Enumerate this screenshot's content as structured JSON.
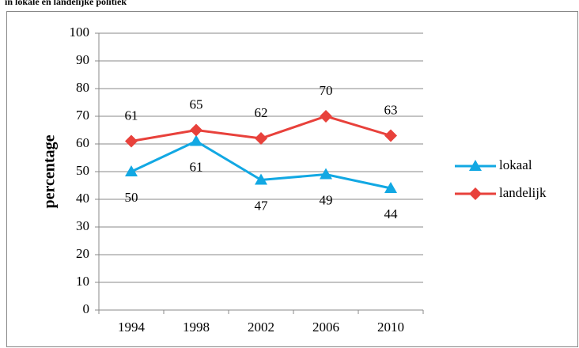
{
  "chart_data": {
    "type": "line",
    "title": "in lokale en landelijke politiek",
    "y_label": "percentage",
    "categories": [
      "1994",
      "1998",
      "2002",
      "2006",
      "2010"
    ],
    "series": [
      {
        "name": "lokaal",
        "color": "#12a8e3",
        "marker": "triangle",
        "label_position": "below",
        "values": [
          50,
          61,
          47,
          49,
          44
        ]
      },
      {
        "name": "landelijk",
        "color": "#e8413b",
        "marker": "diamond",
        "label_position": "above",
        "values": [
          61,
          65,
          62,
          70,
          63
        ]
      }
    ],
    "ylim": [
      0,
      100
    ],
    "yticks": [
      0,
      10,
      20,
      30,
      40,
      50,
      60,
      70,
      80,
      90,
      100
    ],
    "grid": true,
    "legend": "right"
  }
}
